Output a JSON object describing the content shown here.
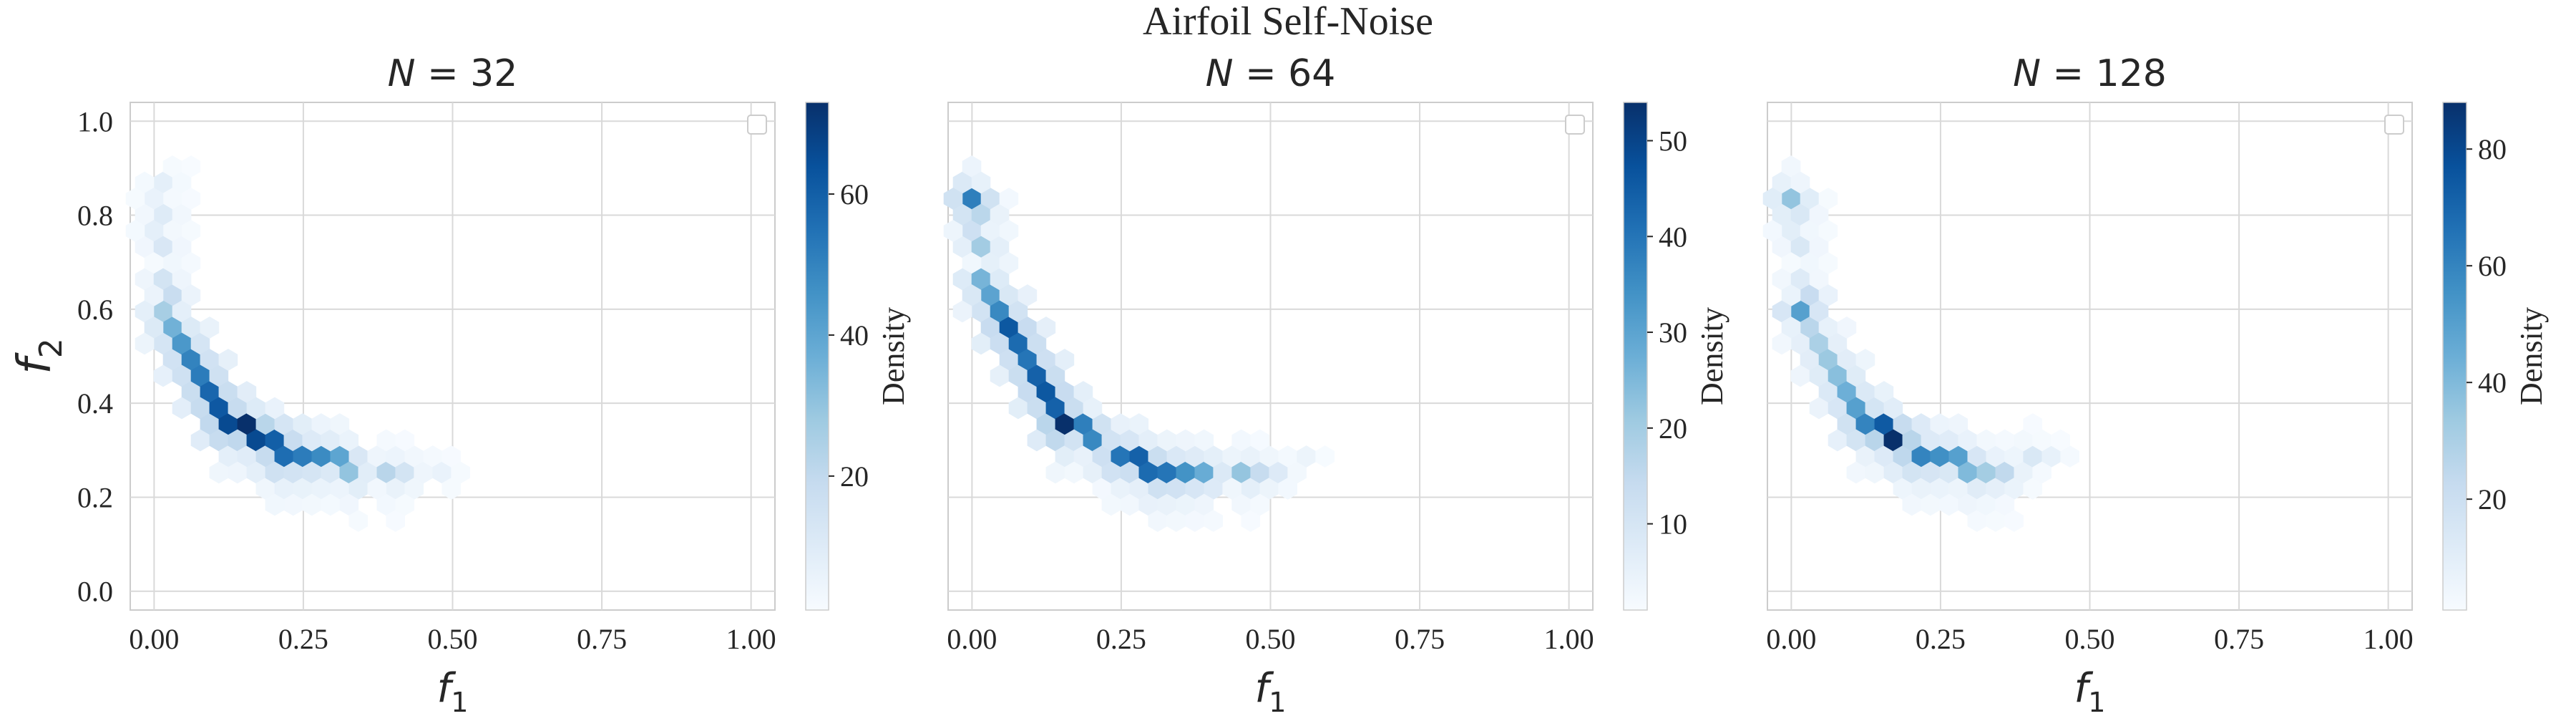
{
  "figure": {
    "suptitle": "Airfoil Self-Noise"
  },
  "chart_data": [
    {
      "type": "hexbin",
      "title": "N = 32",
      "xlabel": "f1",
      "ylabel": "f2",
      "xlim": [
        -0.04,
        1.04
      ],
      "ylim": [
        -0.04,
        1.04
      ],
      "xticks": [
        "0.00",
        "0.25",
        "0.50",
        "0.75",
        "1.00"
      ],
      "yticks": [
        "0.0",
        "0.2",
        "0.4",
        "0.6",
        "0.8",
        "1.0"
      ],
      "grid": true,
      "legend": "top-right (empty)",
      "colormap": "Blues",
      "colorbar": {
        "label": "Density",
        "range": [
          1,
          73
        ],
        "ticks": [
          "20",
          "40",
          "60"
        ]
      },
      "ridge": [
        [
          0.0,
          0.88,
          8
        ],
        [
          0.0,
          0.84,
          6
        ],
        [
          0.01,
          0.8,
          10
        ],
        [
          0.01,
          0.76,
          8
        ],
        [
          0.01,
          0.72,
          12
        ],
        [
          0.01,
          0.68,
          14
        ],
        [
          0.02,
          0.64,
          18
        ],
        [
          0.03,
          0.6,
          26
        ],
        [
          0.03,
          0.58,
          30
        ],
        [
          0.04,
          0.55,
          36
        ],
        [
          0.05,
          0.52,
          44
        ],
        [
          0.06,
          0.49,
          50
        ],
        [
          0.07,
          0.46,
          52
        ],
        [
          0.08,
          0.43,
          58
        ],
        [
          0.1,
          0.4,
          60
        ],
        [
          0.11,
          0.38,
          62
        ],
        [
          0.13,
          0.36,
          66
        ],
        [
          0.15,
          0.34,
          73
        ],
        [
          0.17,
          0.32,
          66
        ],
        [
          0.2,
          0.3,
          60
        ],
        [
          0.22,
          0.29,
          56
        ],
        [
          0.25,
          0.28,
          52
        ],
        [
          0.28,
          0.27,
          48
        ],
        [
          0.31,
          0.27,
          40
        ],
        [
          0.34,
          0.26,
          30
        ],
        [
          0.38,
          0.26,
          22
        ],
        [
          0.42,
          0.26,
          14
        ],
        [
          0.47,
          0.26,
          6
        ]
      ]
    },
    {
      "type": "hexbin",
      "title": "N = 64",
      "xlabel": "f1",
      "ylabel": "",
      "xlim": [
        -0.04,
        1.04
      ],
      "ylim": [
        -0.04,
        1.04
      ],
      "xticks": [
        "0.00",
        "0.25",
        "0.50",
        "0.75",
        "1.00"
      ],
      "yticks": [],
      "grid": true,
      "legend": "top-right (empty)",
      "colormap": "Blues",
      "colorbar": {
        "label": "Density",
        "range": [
          1,
          54
        ],
        "ticks": [
          "10",
          "20",
          "30",
          "40",
          "50"
        ]
      },
      "ridge": [
        [
          0.0,
          0.84,
          38
        ],
        [
          0.01,
          0.8,
          16
        ],
        [
          0.01,
          0.76,
          12
        ],
        [
          0.02,
          0.72,
          20
        ],
        [
          0.02,
          0.68,
          26
        ],
        [
          0.03,
          0.64,
          30
        ],
        [
          0.04,
          0.6,
          36
        ],
        [
          0.05,
          0.57,
          40
        ],
        [
          0.06,
          0.54,
          46
        ],
        [
          0.07,
          0.51,
          42
        ],
        [
          0.09,
          0.48,
          40
        ],
        [
          0.1,
          0.45,
          44
        ],
        [
          0.12,
          0.42,
          46
        ],
        [
          0.14,
          0.39,
          44
        ],
        [
          0.16,
          0.36,
          54
        ],
        [
          0.18,
          0.34,
          38
        ],
        [
          0.21,
          0.31,
          36
        ],
        [
          0.24,
          0.29,
          40
        ],
        [
          0.27,
          0.28,
          44
        ],
        [
          0.3,
          0.27,
          42
        ],
        [
          0.33,
          0.26,
          40
        ],
        [
          0.36,
          0.26,
          34
        ],
        [
          0.4,
          0.25,
          28
        ],
        [
          0.44,
          0.25,
          22
        ],
        [
          0.48,
          0.25,
          14
        ],
        [
          0.52,
          0.26,
          8
        ],
        [
          0.56,
          0.27,
          4
        ]
      ]
    },
    {
      "type": "hexbin",
      "title": "N = 128",
      "xlabel": "f1",
      "ylabel": "",
      "xlim": [
        -0.04,
        1.04
      ],
      "ylim": [
        -0.04,
        1.04
      ],
      "xticks": [
        "0.00",
        "0.25",
        "0.50",
        "0.75",
        "1.00"
      ],
      "yticks": [],
      "grid": true,
      "legend": "top-right (empty)",
      "colormap": "Blues",
      "colorbar": {
        "label": "Density",
        "range": [
          1,
          88
        ],
        "ticks": [
          "20",
          "40",
          "60",
          "80"
        ]
      },
      "ridge": [
        [
          0.0,
          0.84,
          36
        ],
        [
          0.01,
          0.8,
          14
        ],
        [
          0.01,
          0.76,
          10
        ],
        [
          0.01,
          0.72,
          14
        ],
        [
          0.02,
          0.68,
          12
        ],
        [
          0.02,
          0.64,
          22
        ],
        [
          0.03,
          0.6,
          50
        ],
        [
          0.04,
          0.56,
          26
        ],
        [
          0.05,
          0.52,
          30
        ],
        [
          0.06,
          0.49,
          34
        ],
        [
          0.07,
          0.46,
          38
        ],
        [
          0.08,
          0.43,
          44
        ],
        [
          0.1,
          0.4,
          50
        ],
        [
          0.12,
          0.37,
          60
        ],
        [
          0.14,
          0.35,
          74
        ],
        [
          0.16,
          0.33,
          88
        ],
        [
          0.18,
          0.31,
          70
        ],
        [
          0.21,
          0.3,
          60
        ],
        [
          0.24,
          0.29,
          56
        ],
        [
          0.27,
          0.28,
          50
        ],
        [
          0.3,
          0.27,
          40
        ],
        [
          0.33,
          0.27,
          32
        ],
        [
          0.36,
          0.27,
          24
        ],
        [
          0.4,
          0.27,
          14
        ],
        [
          0.44,
          0.27,
          8
        ]
      ]
    }
  ]
}
